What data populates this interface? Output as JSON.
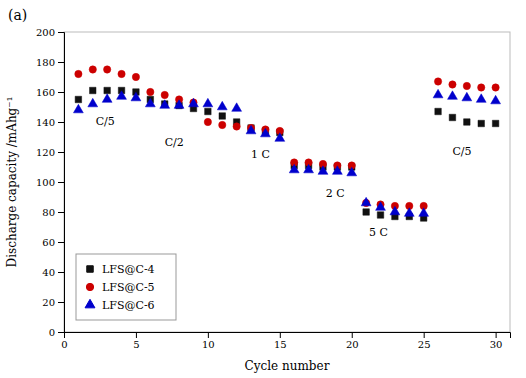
{
  "chart_data": {
    "type": "scatter",
    "title": "(a)",
    "x_label": "Cycle number",
    "y_label": "Discharge capacity /mAhg⁻¹",
    "xlim": [
      0,
      31
    ],
    "ylim": [
      0,
      200
    ],
    "xticks": [
      0,
      5,
      10,
      15,
      20,
      25,
      30
    ],
    "yticks": [
      0,
      20,
      40,
      60,
      80,
      100,
      120,
      140,
      160,
      180,
      200
    ],
    "grid": false,
    "legend": "lower left",
    "x": [
      1,
      2,
      3,
      4,
      5,
      6,
      7,
      8,
      9,
      10,
      11,
      12,
      13,
      14,
      15,
      16,
      17,
      18,
      19,
      20,
      21,
      22,
      23,
      24,
      25,
      26,
      27,
      28,
      29,
      30
    ],
    "series": [
      {
        "name": "LFS@C-4",
        "color": "#111111",
        "marker": "square",
        "values": [
          155,
          161,
          161,
          161,
          160,
          155,
          152,
          151,
          149,
          147,
          144,
          140,
          136,
          134,
          133,
          111,
          111,
          110,
          110,
          110,
          80,
          78,
          77,
          77,
          76,
          147,
          143,
          140,
          139,
          139
        ]
      },
      {
        "name": "LFS@C-5",
        "color": "#cc0000",
        "marker": "circle",
        "values": [
          172,
          175,
          175,
          172,
          170,
          160,
          158,
          155,
          153,
          140,
          138,
          137,
          136,
          135,
          134,
          113,
          113,
          112,
          111,
          111,
          86,
          85,
          84,
          84,
          84,
          167,
          165,
          164,
          163,
          163
        ]
      },
      {
        "name": "LFS@C-6",
        "color": "#0000cc",
        "marker": "triangle",
        "values": [
          148,
          152,
          155,
          157,
          156,
          152,
          151,
          151,
          152,
          152,
          150,
          149,
          134,
          132,
          129,
          108,
          108,
          107,
          107,
          106,
          86,
          83,
          80,
          79,
          79,
          158,
          157,
          156,
          155,
          154
        ]
      }
    ],
    "annotations": [
      {
        "text": "C/5",
        "x": 2.2,
        "y": 138
      },
      {
        "text": "C/2",
        "x": 7.0,
        "y": 124
      },
      {
        "text": "1 C",
        "x": 13.0,
        "y": 116
      },
      {
        "text": "2 C",
        "x": 18.2,
        "y": 90
      },
      {
        "text": "5 C",
        "x": 21.2,
        "y": 64
      },
      {
        "text": "C/5",
        "x": 27.0,
        "y": 118
      }
    ]
  }
}
